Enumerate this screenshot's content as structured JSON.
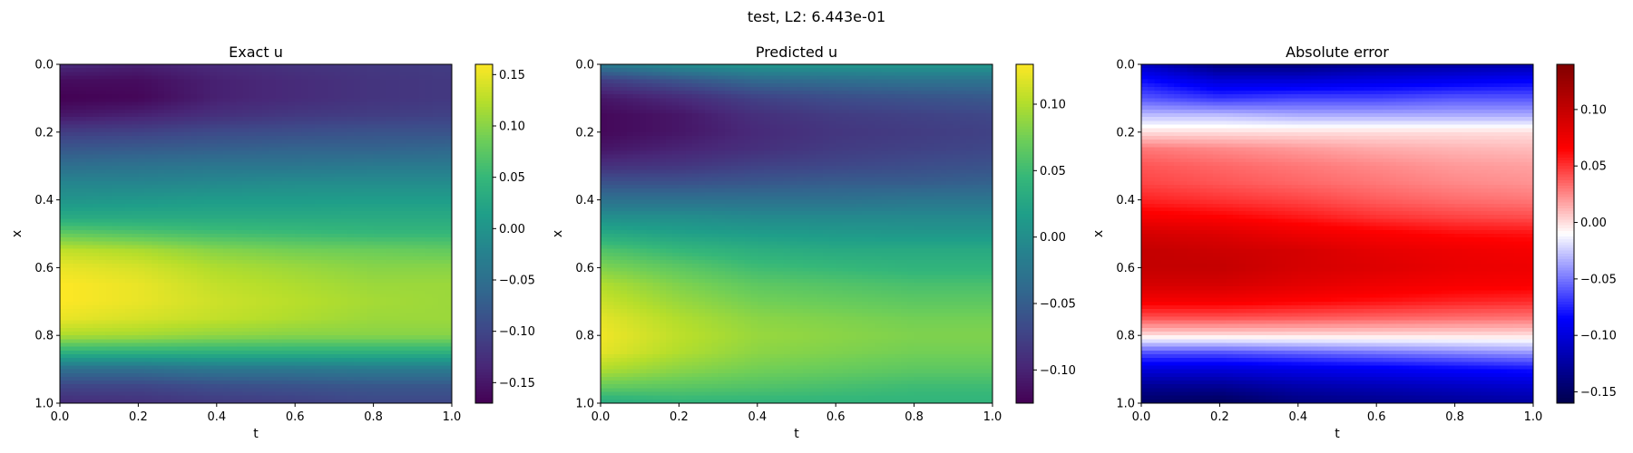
{
  "suptitle": "test, L2: 6.443e-01",
  "colors": {
    "viridis": [
      "#440154",
      "#482878",
      "#3e4989",
      "#31688e",
      "#26828e",
      "#1f9e89",
      "#35b779",
      "#6ece58",
      "#b5de2b",
      "#fde725"
    ],
    "seismic": [
      "#00004c",
      "#0000ff",
      "#ffffff",
      "#ff0000",
      "#800000"
    ]
  },
  "chart_data": [
    {
      "type": "heatmap",
      "title": "Exact u",
      "xlabel": "t",
      "ylabel": "x",
      "xlim": [
        0,
        1
      ],
      "ylim": [
        1,
        0
      ],
      "xticks": [
        "0.0",
        "0.2",
        "0.4",
        "0.6",
        "0.8",
        "1.0"
      ],
      "yticks": [
        "0.0",
        "0.2",
        "0.4",
        "0.6",
        "0.8",
        "1.0"
      ],
      "colormap": "viridis",
      "clim": [
        -0.17,
        0.16
      ],
      "cbar_ticks": [
        0.15,
        0.1,
        0.05,
        0.0,
        -0.05,
        -0.1,
        -0.15
      ],
      "cbar_tick_labels": [
        "0.15",
        "0.10",
        "0.05",
        "0.00",
        "−0.05",
        "−0.10",
        "−0.15"
      ],
      "t": [
        0.0,
        0.2,
        0.4,
        0.6,
        0.8,
        1.0
      ],
      "x": [
        0.0,
        0.05,
        0.1,
        0.15,
        0.2,
        0.25,
        0.3,
        0.35,
        0.4,
        0.45,
        0.5,
        0.55,
        0.6,
        0.65,
        0.7,
        0.75,
        0.8,
        0.85,
        0.9,
        0.95,
        1.0
      ],
      "u": [
        [
          -0.13,
          -0.14,
          -0.13,
          -0.12,
          -0.115,
          -0.11
        ],
        [
          -0.16,
          -0.16,
          -0.14,
          -0.13,
          -0.12,
          -0.115
        ],
        [
          -0.17,
          -0.165,
          -0.14,
          -0.13,
          -0.12,
          -0.115
        ],
        [
          -0.15,
          -0.14,
          -0.125,
          -0.115,
          -0.11,
          -0.105
        ],
        [
          -0.11,
          -0.105,
          -0.095,
          -0.09,
          -0.085,
          -0.085
        ],
        [
          -0.08,
          -0.075,
          -0.07,
          -0.065,
          -0.065,
          -0.06
        ],
        [
          -0.05,
          -0.045,
          -0.04,
          -0.04,
          -0.035,
          -0.035
        ],
        [
          -0.02,
          -0.02,
          -0.015,
          -0.01,
          -0.01,
          -0.01
        ],
        [
          0.0,
          0.005,
          0.01,
          0.01,
          0.012,
          0.012
        ],
        [
          0.03,
          0.03,
          0.03,
          0.03,
          0.03,
          0.03
        ],
        [
          0.08,
          0.07,
          0.06,
          0.055,
          0.05,
          0.05
        ],
        [
          0.13,
          0.12,
          0.1,
          0.09,
          0.085,
          0.08
        ],
        [
          0.15,
          0.14,
          0.12,
          0.11,
          0.1,
          0.1
        ],
        [
          0.16,
          0.15,
          0.13,
          0.12,
          0.11,
          0.11
        ],
        [
          0.16,
          0.15,
          0.135,
          0.125,
          0.115,
          0.11
        ],
        [
          0.15,
          0.14,
          0.13,
          0.12,
          0.11,
          0.11
        ],
        [
          0.12,
          0.115,
          0.105,
          0.1,
          0.1,
          0.1
        ],
        [
          0.04,
          0.04,
          0.04,
          0.04,
          0.04,
          0.04
        ],
        [
          -0.05,
          -0.05,
          -0.04,
          -0.04,
          -0.035,
          -0.035
        ],
        [
          -0.1,
          -0.1,
          -0.09,
          -0.085,
          -0.08,
          -0.08
        ],
        [
          -0.13,
          -0.125,
          -0.115,
          -0.11,
          -0.1,
          -0.1
        ]
      ]
    },
    {
      "type": "heatmap",
      "title": "Predicted u",
      "xlabel": "t",
      "ylabel": "x",
      "xlim": [
        0,
        1
      ],
      "ylim": [
        1,
        0
      ],
      "xticks": [
        "0.0",
        "0.2",
        "0.4",
        "0.6",
        "0.8",
        "1.0"
      ],
      "yticks": [
        "0.0",
        "0.2",
        "0.4",
        "0.6",
        "0.8",
        "1.0"
      ],
      "colormap": "viridis",
      "clim": [
        -0.125,
        0.13
      ],
      "cbar_ticks": [
        0.1,
        0.05,
        0.0,
        -0.05,
        -0.1
      ],
      "cbar_tick_labels": [
        "0.10",
        "0.05",
        "0.00",
        "−0.05",
        "−0.10"
      ],
      "t": [
        0.0,
        0.2,
        0.4,
        0.6,
        0.8,
        1.0
      ],
      "x": [
        0.0,
        0.05,
        0.1,
        0.15,
        0.2,
        0.25,
        0.3,
        0.35,
        0.4,
        0.45,
        0.5,
        0.55,
        0.6,
        0.65,
        0.7,
        0.75,
        0.8,
        0.85,
        0.9,
        0.95,
        1.0
      ],
      "u": [
        [
          -0.02,
          0.0,
          0.01,
          0.01,
          0.01,
          0.01
        ],
        [
          -0.08,
          -0.06,
          -0.04,
          -0.035,
          -0.03,
          -0.03
        ],
        [
          -0.11,
          -0.095,
          -0.075,
          -0.065,
          -0.06,
          -0.055
        ],
        [
          -0.12,
          -0.11,
          -0.09,
          -0.08,
          -0.075,
          -0.07
        ],
        [
          -0.12,
          -0.11,
          -0.095,
          -0.085,
          -0.08,
          -0.075
        ],
        [
          -0.11,
          -0.1,
          -0.09,
          -0.08,
          -0.075,
          -0.07
        ],
        [
          -0.09,
          -0.085,
          -0.075,
          -0.07,
          -0.065,
          -0.06
        ],
        [
          -0.06,
          -0.06,
          -0.055,
          -0.05,
          -0.05,
          -0.045
        ],
        [
          -0.03,
          -0.03,
          -0.03,
          -0.03,
          -0.025,
          -0.025
        ],
        [
          0.0,
          0.0,
          -0.005,
          -0.005,
          -0.005,
          -0.005
        ],
        [
          0.03,
          0.02,
          0.015,
          0.012,
          0.01,
          0.01
        ],
        [
          0.06,
          0.045,
          0.035,
          0.03,
          0.03,
          0.03
        ],
        [
          0.08,
          0.065,
          0.05,
          0.045,
          0.04,
          0.04
        ],
        [
          0.1,
          0.08,
          0.065,
          0.06,
          0.055,
          0.055
        ],
        [
          0.11,
          0.09,
          0.075,
          0.07,
          0.065,
          0.065
        ],
        [
          0.12,
          0.1,
          0.085,
          0.08,
          0.075,
          0.075
        ],
        [
          0.125,
          0.105,
          0.09,
          0.085,
          0.08,
          0.08
        ],
        [
          0.12,
          0.1,
          0.085,
          0.08,
          0.075,
          0.075
        ],
        [
          0.1,
          0.085,
          0.075,
          0.07,
          0.065,
          0.065
        ],
        [
          0.07,
          0.065,
          0.06,
          0.055,
          0.05,
          0.05
        ],
        [
          0.03,
          0.04,
          0.04,
          0.04,
          0.04,
          0.04
        ]
      ]
    },
    {
      "type": "heatmap",
      "title": "Absolute error",
      "xlabel": "t",
      "ylabel": "x",
      "xlim": [
        0,
        1
      ],
      "ylim": [
        1,
        0
      ],
      "xticks": [
        "0.0",
        "0.2",
        "0.4",
        "0.6",
        "0.8",
        "1.0"
      ],
      "yticks": [
        "0.0",
        "0.2",
        "0.4",
        "0.6",
        "0.8",
        "1.0"
      ],
      "colormap": "seismic",
      "clim": [
        -0.16,
        0.14
      ],
      "cbar_ticks": [
        0.1,
        0.05,
        0.0,
        -0.05,
        -0.1,
        -0.15
      ],
      "cbar_tick_labels": [
        "0.10",
        "0.05",
        "0.00",
        "−0.05",
        "−0.10",
        "−0.15"
      ],
      "t": [
        0.0,
        0.2,
        0.4,
        0.6,
        0.8,
        1.0
      ],
      "x": [
        0.0,
        0.05,
        0.1,
        0.15,
        0.2,
        0.25,
        0.3,
        0.35,
        0.4,
        0.45,
        0.5,
        0.55,
        0.6,
        0.65,
        0.7,
        0.75,
        0.8,
        0.85,
        0.9,
        0.95,
        1.0
      ],
      "u": [
        [
          -0.11,
          -0.14,
          -0.14,
          -0.13,
          -0.125,
          -0.12
        ],
        [
          -0.08,
          -0.1,
          -0.1,
          -0.095,
          -0.09,
          -0.085
        ],
        [
          -0.06,
          -0.07,
          -0.065,
          -0.065,
          -0.06,
          -0.06
        ],
        [
          -0.03,
          -0.03,
          -0.035,
          -0.035,
          -0.035,
          -0.035
        ],
        [
          0.0,
          0.0,
          0.0,
          0.0,
          0.0,
          0.0
        ],
        [
          0.03,
          0.025,
          0.02,
          0.015,
          0.012,
          0.01
        ],
        [
          0.04,
          0.035,
          0.03,
          0.025,
          0.02,
          0.018
        ],
        [
          0.045,
          0.04,
          0.035,
          0.03,
          0.025,
          0.022
        ],
        [
          0.055,
          0.05,
          0.045,
          0.038,
          0.033,
          0.03
        ],
        [
          0.07,
          0.065,
          0.058,
          0.05,
          0.045,
          0.042
        ],
        [
          0.09,
          0.085,
          0.075,
          0.068,
          0.062,
          0.06
        ],
        [
          0.1,
          0.095,
          0.09,
          0.08,
          0.075,
          0.07
        ],
        [
          0.1,
          0.1,
          0.09,
          0.085,
          0.078,
          0.075
        ],
        [
          0.09,
          0.09,
          0.082,
          0.075,
          0.07,
          0.068
        ],
        [
          0.07,
          0.07,
          0.065,
          0.06,
          0.055,
          0.052
        ],
        [
          0.04,
          0.04,
          0.038,
          0.035,
          0.032,
          0.03
        ],
        [
          0.0,
          0.0,
          0.0,
          0.0,
          0.0,
          0.0
        ],
        [
          -0.06,
          -0.06,
          -0.055,
          -0.05,
          -0.045,
          -0.04
        ],
        [
          -0.1,
          -0.1,
          -0.095,
          -0.09,
          -0.085,
          -0.08
        ],
        [
          -0.13,
          -0.13,
          -0.12,
          -0.115,
          -0.11,
          -0.105
        ],
        [
          -0.15,
          -0.155,
          -0.14,
          -0.135,
          -0.13,
          -0.125
        ]
      ]
    }
  ]
}
